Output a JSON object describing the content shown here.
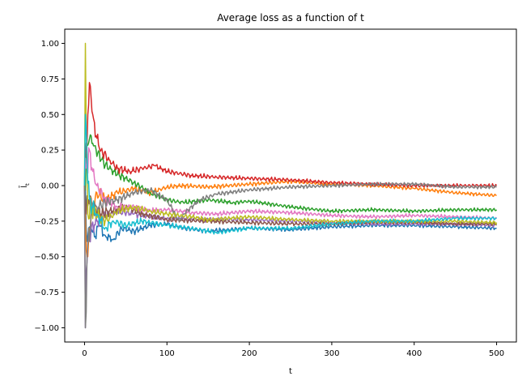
{
  "chart_data": {
    "type": "line",
    "title": "Average loss as a function of t",
    "xlabel": "t",
    "ylabel": "l̄",
    "ylabel_subscript": "t",
    "xlim": [
      -24,
      524
    ],
    "ylim": [
      -1.1,
      1.1
    ],
    "xticks": [
      0,
      100,
      200,
      300,
      400,
      500
    ],
    "yticks": [
      -1.0,
      -0.75,
      -0.5,
      -0.25,
      0.0,
      0.25,
      0.5,
      0.75,
      1.0
    ],
    "xtick_labels": [
      "0",
      "100",
      "200",
      "300",
      "400",
      "500"
    ],
    "ytick_labels": [
      "−1.00",
      "−0.75",
      "−0.50",
      "−0.25",
      "0.00",
      "0.25",
      "0.50",
      "0.75",
      "1.00"
    ],
    "grid": false,
    "legend": "none",
    "series": [
      {
        "color": "#1f77b4",
        "points": [
          [
            0,
            0.0
          ],
          [
            2,
            -0.3
          ],
          [
            4,
            -0.36
          ],
          [
            8,
            -0.3
          ],
          [
            12,
            -0.36
          ],
          [
            18,
            -0.28
          ],
          [
            25,
            -0.35
          ],
          [
            35,
            -0.38
          ],
          [
            45,
            -0.3
          ],
          [
            60,
            -0.32
          ],
          [
            80,
            -0.28
          ],
          [
            100,
            -0.27
          ],
          [
            120,
            -0.3
          ],
          [
            150,
            -0.32
          ],
          [
            200,
            -0.3
          ],
          [
            250,
            -0.31
          ],
          [
            300,
            -0.29
          ],
          [
            350,
            -0.28
          ],
          [
            400,
            -0.28
          ],
          [
            450,
            -0.29
          ],
          [
            500,
            -0.3
          ]
        ]
      },
      {
        "color": "#ff7f0e",
        "points": [
          [
            0,
            0.0
          ],
          [
            1,
            -0.2
          ],
          [
            2,
            -0.45
          ],
          [
            4,
            -0.5
          ],
          [
            6,
            -0.3
          ],
          [
            10,
            -0.15
          ],
          [
            15,
            -0.05
          ],
          [
            25,
            -0.1
          ],
          [
            40,
            -0.05
          ],
          [
            60,
            -0.02
          ],
          [
            80,
            -0.05
          ],
          [
            100,
            -0.01
          ],
          [
            120,
            0.0
          ],
          [
            150,
            -0.01
          ],
          [
            200,
            0.01
          ],
          [
            250,
            0.03
          ],
          [
            300,
            0.01
          ],
          [
            350,
            0.0
          ],
          [
            400,
            -0.02
          ],
          [
            450,
            -0.05
          ],
          [
            500,
            -0.07
          ]
        ]
      },
      {
        "color": "#2ca02c",
        "points": [
          [
            0,
            0.0
          ],
          [
            2,
            0.2
          ],
          [
            5,
            0.3
          ],
          [
            8,
            0.35
          ],
          [
            12,
            0.28
          ],
          [
            20,
            0.18
          ],
          [
            30,
            0.12
          ],
          [
            40,
            0.08
          ],
          [
            60,
            0.02
          ],
          [
            80,
            -0.05
          ],
          [
            100,
            -0.1
          ],
          [
            120,
            -0.12
          ],
          [
            150,
            -0.1
          ],
          [
            180,
            -0.12
          ],
          [
            200,
            -0.11
          ],
          [
            250,
            -0.15
          ],
          [
            300,
            -0.18
          ],
          [
            350,
            -0.17
          ],
          [
            400,
            -0.18
          ],
          [
            450,
            -0.17
          ],
          [
            500,
            -0.17
          ]
        ]
      },
      {
        "color": "#d62728",
        "points": [
          [
            0,
            0.0
          ],
          [
            2,
            0.3
          ],
          [
            4,
            0.5
          ],
          [
            7,
            0.7
          ],
          [
            10,
            0.5
          ],
          [
            14,
            0.35
          ],
          [
            20,
            0.25
          ],
          [
            30,
            0.18
          ],
          [
            40,
            0.12
          ],
          [
            55,
            0.1
          ],
          [
            70,
            0.12
          ],
          [
            85,
            0.14
          ],
          [
            100,
            0.1
          ],
          [
            130,
            0.07
          ],
          [
            160,
            0.06
          ],
          [
            200,
            0.05
          ],
          [
            250,
            0.04
          ],
          [
            300,
            0.02
          ],
          [
            350,
            0.01
          ],
          [
            400,
            0.0
          ],
          [
            450,
            0.0
          ],
          [
            500,
            0.0
          ]
        ]
      },
      {
        "color": "#9467bd",
        "points": [
          [
            0,
            0.0
          ],
          [
            1,
            -1.0
          ],
          [
            2,
            -0.6
          ],
          [
            4,
            -0.4
          ],
          [
            8,
            -0.3
          ],
          [
            15,
            -0.25
          ],
          [
            25,
            -0.22
          ],
          [
            40,
            -0.18
          ],
          [
            60,
            -0.2
          ],
          [
            80,
            -0.22
          ],
          [
            100,
            -0.23
          ],
          [
            150,
            -0.24
          ],
          [
            200,
            -0.24
          ],
          [
            250,
            -0.25
          ],
          [
            300,
            -0.26
          ],
          [
            350,
            -0.27
          ],
          [
            400,
            -0.27
          ],
          [
            450,
            -0.27
          ],
          [
            500,
            -0.28
          ]
        ]
      },
      {
        "color": "#8c564b",
        "points": [
          [
            0,
            0.0
          ],
          [
            2,
            -0.2
          ],
          [
            5,
            -0.1
          ],
          [
            10,
            -0.15
          ],
          [
            20,
            -0.2
          ],
          [
            30,
            -0.18
          ],
          [
            50,
            -0.15
          ],
          [
            70,
            -0.2
          ],
          [
            100,
            -0.24
          ],
          [
            150,
            -0.25
          ],
          [
            200,
            -0.26
          ],
          [
            250,
            -0.27
          ],
          [
            300,
            -0.27
          ],
          [
            350,
            -0.26
          ],
          [
            400,
            -0.26
          ],
          [
            450,
            -0.27
          ],
          [
            500,
            -0.27
          ]
        ]
      },
      {
        "color": "#e377c2",
        "points": [
          [
            0,
            0.0
          ],
          [
            3,
            0.15
          ],
          [
            6,
            0.25
          ],
          [
            10,
            0.1
          ],
          [
            15,
            0.0
          ],
          [
            25,
            -0.1
          ],
          [
            40,
            -0.15
          ],
          [
            60,
            -0.15
          ],
          [
            80,
            -0.18
          ],
          [
            100,
            -0.17
          ],
          [
            130,
            -0.19
          ],
          [
            160,
            -0.2
          ],
          [
            200,
            -0.18
          ],
          [
            250,
            -0.19
          ],
          [
            300,
            -0.21
          ],
          [
            350,
            -0.22
          ],
          [
            400,
            -0.21
          ],
          [
            450,
            -0.22
          ],
          [
            500,
            -0.23
          ]
        ]
      },
      {
        "color": "#7f7f7f",
        "points": [
          [
            0,
            0.0
          ],
          [
            1,
            -1.0
          ],
          [
            3,
            -0.5
          ],
          [
            8,
            -0.2
          ],
          [
            15,
            -0.15
          ],
          [
            25,
            -0.12
          ],
          [
            40,
            -0.1
          ],
          [
            60,
            -0.05
          ],
          [
            80,
            -0.03
          ],
          [
            100,
            -0.1
          ],
          [
            110,
            -0.2
          ],
          [
            115,
            -0.25
          ],
          [
            120,
            -0.2
          ],
          [
            140,
            -0.1
          ],
          [
            160,
            -0.06
          ],
          [
            200,
            -0.03
          ],
          [
            250,
            -0.01
          ],
          [
            300,
            0.0
          ],
          [
            350,
            0.01
          ],
          [
            400,
            0.01
          ],
          [
            450,
            -0.01
          ],
          [
            500,
            -0.01
          ]
        ]
      },
      {
        "color": "#bcbd22",
        "points": [
          [
            0,
            0.0
          ],
          [
            1,
            1.0
          ],
          [
            2,
            0.4
          ],
          [
            4,
            -0.2
          ],
          [
            8,
            -0.15
          ],
          [
            15,
            -0.2
          ],
          [
            25,
            -0.25
          ],
          [
            40,
            -0.18
          ],
          [
            60,
            -0.15
          ],
          [
            80,
            -0.18
          ],
          [
            100,
            -0.2
          ],
          [
            130,
            -0.22
          ],
          [
            150,
            -0.24
          ],
          [
            200,
            -0.22
          ],
          [
            250,
            -0.24
          ],
          [
            300,
            -0.25
          ],
          [
            350,
            -0.25
          ],
          [
            400,
            -0.25
          ],
          [
            450,
            -0.25
          ],
          [
            500,
            -0.26
          ]
        ]
      },
      {
        "color": "#17becf",
        "points": [
          [
            0,
            0.0
          ],
          [
            1,
            0.5
          ],
          [
            3,
            0.2
          ],
          [
            6,
            -0.1
          ],
          [
            10,
            -0.15
          ],
          [
            15,
            -0.2
          ],
          [
            25,
            -0.3
          ],
          [
            35,
            -0.25
          ],
          [
            50,
            -0.28
          ],
          [
            70,
            -0.25
          ],
          [
            100,
            -0.28
          ],
          [
            130,
            -0.3
          ],
          [
            160,
            -0.33
          ],
          [
            200,
            -0.3
          ],
          [
            250,
            -0.3
          ],
          [
            300,
            -0.27
          ],
          [
            350,
            -0.25
          ],
          [
            400,
            -0.25
          ],
          [
            450,
            -0.23
          ],
          [
            500,
            -0.23
          ]
        ]
      }
    ]
  }
}
